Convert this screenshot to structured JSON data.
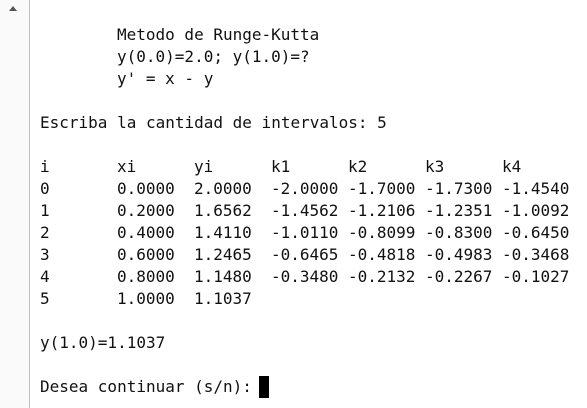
{
  "intro_lines": [
    "Metodo de Runge-Kutta",
    "y(0.0)=2.0; y(1.0)=?",
    "y' = x - y"
  ],
  "prompt": "Escriba la cantidad de intervalos: 5",
  "table": {
    "columns": [
      "i",
      "xi",
      "yi",
      "k1",
      "k2",
      "k3",
      "k4"
    ],
    "rows": [
      [
        "0",
        "0.0000",
        "2.0000",
        "-2.0000",
        "-1.7000",
        "-1.7300",
        "-1.4540"
      ],
      [
        "1",
        "0.2000",
        "1.6562",
        "-1.4562",
        "-1.2106",
        "-1.2351",
        "-1.0092"
      ],
      [
        "2",
        "0.4000",
        "1.4110",
        "-1.0110",
        "-0.8099",
        "-0.8300",
        "-0.6450"
      ],
      [
        "3",
        "0.6000",
        "1.2465",
        "-0.6465",
        "-0.4818",
        "-0.4983",
        "-0.3468"
      ],
      [
        "4",
        "0.8000",
        "1.1480",
        "-0.3480",
        "-0.2132",
        "-0.2267",
        "-0.1027"
      ],
      [
        "5",
        "1.0000",
        "1.1037"
      ]
    ]
  },
  "result": "y(1.0)=1.1037",
  "continue_prompt": "Desea continuar (s/n):"
}
